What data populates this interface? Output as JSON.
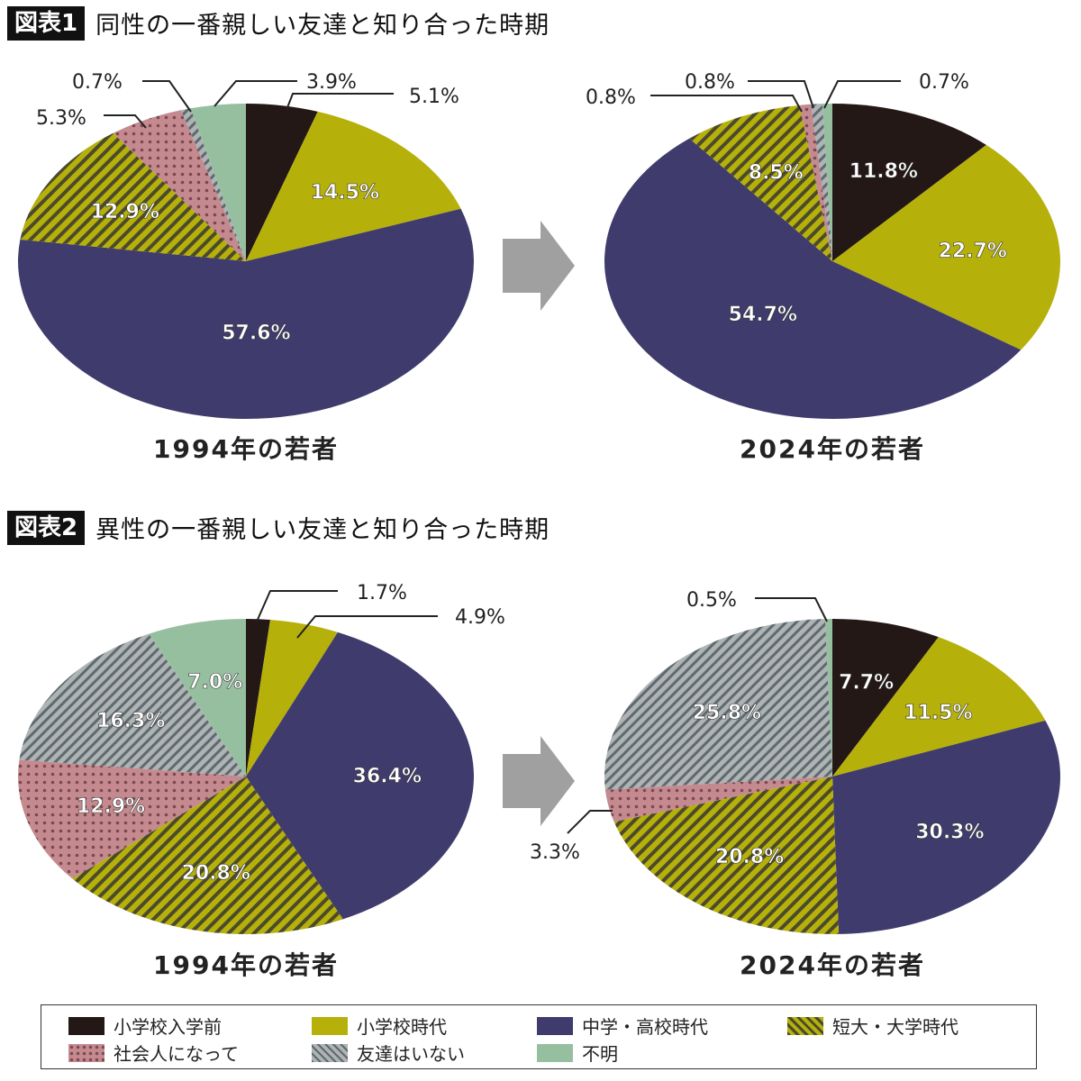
{
  "figure1": {
    "tag": "図表1",
    "title": "同性の一番親しい友達と知り合った時期"
  },
  "figure2": {
    "tag": "図表2",
    "title": "異性の一番親しい友達と知り合った時期"
  },
  "colors": {
    "小学校入学前": "#231815",
    "小学校時代": "#b5b00a",
    "中学・高校時代": "#3f3b6c",
    "短大・大学時代": "#b5b00a",
    "社会人になって": "#c48a8f",
    "友達はいない": "#9aa0a0",
    "不明": "#96bfa0"
  },
  "legend": [
    "小学校入学前",
    "小学校時代",
    "中学・高校時代",
    "短大・大学時代",
    "社会人になって",
    "友達はいない",
    "不明"
  ],
  "chart_data": [
    {
      "type": "pie",
      "figure": "図表1",
      "caption": "1994年の若者",
      "categories": [
        "小学校入学前",
        "小学校時代",
        "中学・高校時代",
        "短大・大学時代",
        "社会人になって",
        "友達はいない",
        "不明"
      ],
      "values": [
        5.1,
        14.5,
        57.6,
        12.9,
        5.3,
        0.7,
        3.9
      ],
      "labels": [
        "5.1%",
        "14.5%",
        "57.6%",
        "12.9%",
        "5.3%",
        "0.7%",
        "3.9%"
      ]
    },
    {
      "type": "pie",
      "figure": "図表1",
      "caption": "2024年の若者",
      "categories": [
        "小学校入学前",
        "小学校時代",
        "中学・高校時代",
        "短大・大学時代",
        "社会人になって",
        "友達はいない",
        "不明"
      ],
      "values": [
        11.8,
        22.7,
        54.7,
        8.5,
        0.8,
        0.8,
        0.7
      ],
      "labels": [
        "11.8%",
        "22.7%",
        "54.7%",
        "8.5%",
        "0.8%",
        "0.8%",
        "0.7%"
      ]
    },
    {
      "type": "pie",
      "figure": "図表2",
      "caption": "1994年の若者",
      "categories": [
        "小学校入学前",
        "小学校時代",
        "中学・高校時代",
        "短大・大学時代",
        "社会人になって",
        "友達はいない",
        "不明"
      ],
      "values": [
        1.7,
        4.9,
        36.4,
        20.8,
        12.9,
        16.3,
        7.0
      ],
      "labels": [
        "1.7%",
        "4.9%",
        "36.4%",
        "20.8%",
        "12.9%",
        "16.3%",
        "7.0%"
      ]
    },
    {
      "type": "pie",
      "figure": "図表2",
      "caption": "2024年の若者",
      "categories": [
        "小学校入学前",
        "小学校時代",
        "中学・高校時代",
        "短大・大学時代",
        "社会人になって",
        "友達はいない",
        "不明"
      ],
      "values": [
        7.7,
        11.5,
        30.3,
        20.8,
        3.3,
        25.8,
        0.5
      ],
      "labels": [
        "7.7%",
        "11.5%",
        "30.3%",
        "20.8%",
        "3.3%",
        "25.8%",
        "0.5%"
      ]
    }
  ]
}
